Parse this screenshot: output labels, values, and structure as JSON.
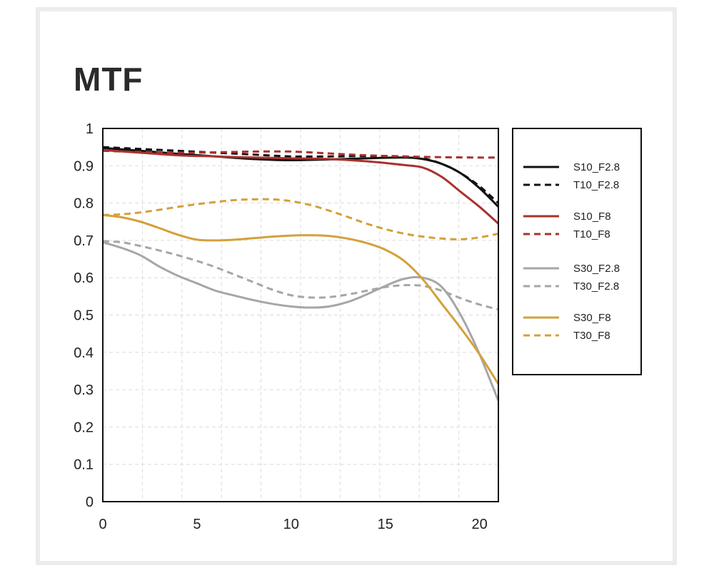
{
  "chart_data": {
    "type": "line",
    "title": "MTF",
    "xlabel": "",
    "ylabel": "",
    "xlim": [
      0,
      21
    ],
    "ylim": [
      0,
      1
    ],
    "x_ticks": [
      0,
      5,
      10,
      15,
      20
    ],
    "x_tick_labels": [
      "0",
      "5",
      "10",
      "15",
      "20"
    ],
    "y_ticks": [
      0,
      0.1,
      0.2,
      0.3,
      0.4,
      0.5,
      0.6,
      0.7,
      0.8,
      0.9,
      1
    ],
    "y_tick_labels": [
      "0",
      "0.1",
      "0.2",
      "0.3",
      "0.4",
      "0.5",
      "0.6",
      "0.7",
      "0.8",
      "0.9",
      "1"
    ],
    "grid": true,
    "legend_position": "right",
    "series": [
      {
        "name": "S10_F2.8",
        "color": "#111111",
        "dashed": false,
        "x": [
          0,
          2,
          4,
          6,
          8,
          10,
          12,
          14,
          16,
          17,
          18,
          19,
          20,
          21
        ],
        "values": [
          0.948,
          0.94,
          0.932,
          0.925,
          0.918,
          0.915,
          0.917,
          0.92,
          0.922,
          0.918,
          0.905,
          0.88,
          0.84,
          0.79
        ]
      },
      {
        "name": "T10_F2.8",
        "color": "#111111",
        "dashed": true,
        "x": [
          0,
          2,
          4,
          6,
          8,
          10,
          12,
          14,
          16,
          17,
          18,
          19,
          20,
          21
        ],
        "values": [
          0.95,
          0.945,
          0.94,
          0.935,
          0.93,
          0.925,
          0.925,
          0.926,
          0.925,
          0.92,
          0.905,
          0.88,
          0.845,
          0.8
        ]
      },
      {
        "name": "S10_F8",
        "color": "#a8322e",
        "dashed": false,
        "x": [
          0,
          2,
          4,
          6,
          8,
          10,
          12,
          14,
          16,
          17,
          18,
          19,
          20,
          21
        ],
        "values": [
          0.942,
          0.935,
          0.928,
          0.925,
          0.922,
          0.92,
          0.918,
          0.912,
          0.902,
          0.895,
          0.87,
          0.83,
          0.79,
          0.745
        ]
      },
      {
        "name": "T10_F8",
        "color": "#a8322e",
        "dashed": true,
        "x": [
          0,
          2,
          4,
          6,
          8,
          10,
          12,
          14,
          16,
          18,
          20,
          21
        ],
        "values": [
          0.94,
          0.937,
          0.935,
          0.936,
          0.938,
          0.938,
          0.933,
          0.928,
          0.925,
          0.923,
          0.922,
          0.922
        ]
      },
      {
        "name": "S30_F2.8",
        "color": "#a6a6a6",
        "dashed": false,
        "x": [
          0,
          1,
          2,
          3,
          4,
          5,
          6,
          7,
          8,
          9,
          10,
          11,
          12,
          13,
          14,
          15,
          16,
          17,
          18,
          19,
          20,
          21
        ],
        "values": [
          0.695,
          0.68,
          0.66,
          0.63,
          0.605,
          0.585,
          0.565,
          0.552,
          0.54,
          0.53,
          0.523,
          0.52,
          0.523,
          0.535,
          0.555,
          0.578,
          0.597,
          0.6,
          0.575,
          0.5,
          0.395,
          0.27
        ]
      },
      {
        "name": "T30_F2.8",
        "color": "#a6a6a6",
        "dashed": true,
        "x": [
          0,
          1,
          2,
          3,
          4,
          5,
          6,
          7,
          8,
          9,
          10,
          11,
          12,
          13,
          14,
          15,
          16,
          17,
          18,
          19,
          20,
          21
        ],
        "values": [
          0.698,
          0.695,
          0.685,
          0.673,
          0.66,
          0.645,
          0.628,
          0.608,
          0.588,
          0.568,
          0.553,
          0.547,
          0.548,
          0.555,
          0.565,
          0.575,
          0.58,
          0.578,
          0.565,
          0.545,
          0.528,
          0.515
        ]
      },
      {
        "name": "S30_F8",
        "color": "#d4a03a",
        "dashed": false,
        "x": [
          0,
          1,
          2,
          3,
          4,
          5,
          6,
          7,
          8,
          9,
          10,
          11,
          12,
          13,
          14,
          15,
          16,
          17,
          18,
          19,
          20,
          21
        ],
        "values": [
          0.768,
          0.762,
          0.75,
          0.733,
          0.715,
          0.702,
          0.7,
          0.702,
          0.706,
          0.71,
          0.713,
          0.714,
          0.712,
          0.705,
          0.693,
          0.675,
          0.645,
          0.595,
          0.53,
          0.465,
          0.395,
          0.315
        ]
      },
      {
        "name": "T30_F8",
        "color": "#d4a03a",
        "dashed": true,
        "x": [
          0,
          1,
          2,
          3,
          4,
          5,
          6,
          7,
          8,
          9,
          10,
          11,
          12,
          13,
          14,
          15,
          16,
          17,
          18,
          19,
          20,
          21
        ],
        "values": [
          0.768,
          0.77,
          0.775,
          0.782,
          0.79,
          0.797,
          0.803,
          0.808,
          0.81,
          0.81,
          0.805,
          0.795,
          0.78,
          0.763,
          0.745,
          0.73,
          0.718,
          0.71,
          0.705,
          0.703,
          0.708,
          0.718
        ]
      }
    ]
  }
}
